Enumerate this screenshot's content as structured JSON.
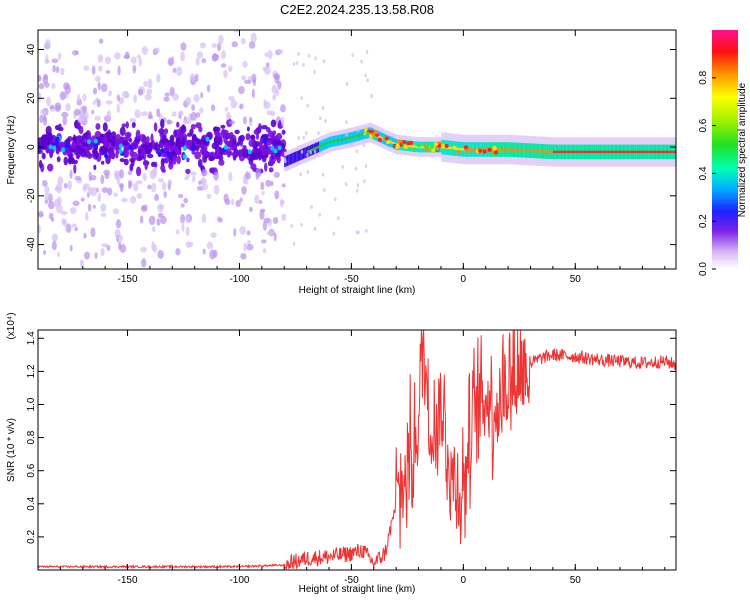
{
  "title": "C2E2.2024.235.13.58.R08",
  "chart_data": [
    {
      "type": "heatmap",
      "title": "C2E2.2024.235.13.58.R08",
      "xlabel": "Height of straight line (km)",
      "ylabel": "Frequency (Hz)",
      "xlim": [
        -190,
        95
      ],
      "ylim": [
        -50,
        48
      ],
      "xticks": [
        -150,
        -100,
        -50,
        0,
        50
      ],
      "yticks": [
        -40,
        -20,
        0,
        20,
        40
      ],
      "colorbar": {
        "label": "Normalized spectral amplitude",
        "range": [
          0.0,
          1.0
        ],
        "ticks": [
          0.0,
          0.2,
          0.4,
          0.6,
          0.8
        ],
        "tick_labels": [
          "0.0",
          "0.2",
          "0.4",
          "0.6",
          "0.8"
        ]
      },
      "ridge": {
        "name": "dominant frequency trace",
        "x": [
          -80,
          -70,
          -60,
          -50,
          -42,
          -35,
          -30,
          -20,
          -10,
          0,
          10,
          20,
          40,
          60,
          80,
          95
        ],
        "y": [
          -6,
          -2,
          2,
          4,
          6,
          3,
          1,
          0,
          0,
          -1,
          -1,
          -1,
          -2,
          -2,
          -2,
          -2
        ]
      },
      "noise_region": {
        "x": [
          -190,
          -80
        ],
        "freq_spread_hz": 50
      }
    },
    {
      "type": "line",
      "xlabel": "Height of straight line (km)",
      "ylabel": "SNR (10 * v/v)",
      "y_scale_label": "(x10⁴)",
      "xlim": [
        -190,
        95
      ],
      "ylim": [
        0,
        1.45
      ],
      "xticks": [
        -150,
        -100,
        -50,
        0,
        50
      ],
      "yticks": [
        0.2,
        0.4,
        0.6,
        0.8,
        1.0,
        1.2,
        1.4
      ],
      "ytick_labels": [
        "0.2",
        "0.4",
        "0.6",
        "0.8",
        "1.0",
        "1.2",
        "1.4"
      ],
      "series": [
        {
          "name": "SNR",
          "color": "#ee3333",
          "x": [
            -190,
            -150,
            -100,
            -80,
            -70,
            -60,
            -50,
            -45,
            -40,
            -35,
            -30,
            -25,
            -20,
            -18,
            -15,
            -10,
            -5,
            0,
            5,
            10,
            15,
            20,
            25,
            30,
            35,
            40,
            50,
            60,
            70,
            80,
            90,
            95
          ],
          "y": [
            0.02,
            0.02,
            0.02,
            0.03,
            0.07,
            0.08,
            0.1,
            0.12,
            0.04,
            0.1,
            0.4,
            0.6,
            0.9,
            1.4,
            0.85,
            1.0,
            0.55,
            0.5,
            0.95,
            1.05,
            1.0,
            1.15,
            1.2,
            1.25,
            1.28,
            1.3,
            1.29,
            1.27,
            1.26,
            1.25,
            1.26,
            1.24
          ]
        }
      ]
    }
  ]
}
